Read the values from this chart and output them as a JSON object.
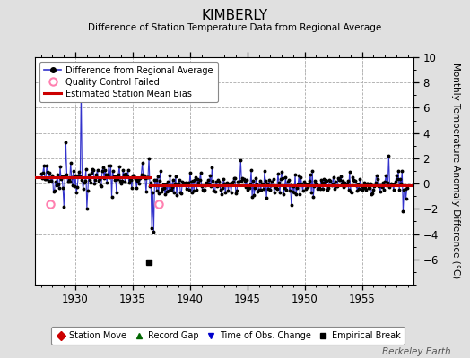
{
  "title": "KIMBERLY",
  "subtitle": "Difference of Station Temperature Data from Regional Average",
  "ylabel": "Monthly Temperature Anomaly Difference (°C)",
  "xlim": [
    1926.5,
    1959.5
  ],
  "ylim": [
    -8,
    10
  ],
  "yticks": [
    -6,
    -4,
    -2,
    0,
    2,
    4,
    6,
    8,
    10
  ],
  "xticks": [
    1930,
    1935,
    1940,
    1945,
    1950,
    1955
  ],
  "background_color": "#e0e0e0",
  "plot_bg_color": "#ffffff",
  "line_color": "#3333cc",
  "dot_color": "#000000",
  "bias_color": "#cc0000",
  "bias_segment_1": [
    1926.5,
    1936.5,
    0.5
  ],
  "bias_segment_2": [
    1936.5,
    1959.5,
    -0.1
  ],
  "empirical_break_x": 1936.42,
  "empirical_break_y": -6.2,
  "qc_failed_1": [
    1927.83,
    -1.65
  ],
  "qc_failed_2": [
    1937.25,
    -1.65
  ],
  "watermark": "Berkeley Earth",
  "seed": 42
}
